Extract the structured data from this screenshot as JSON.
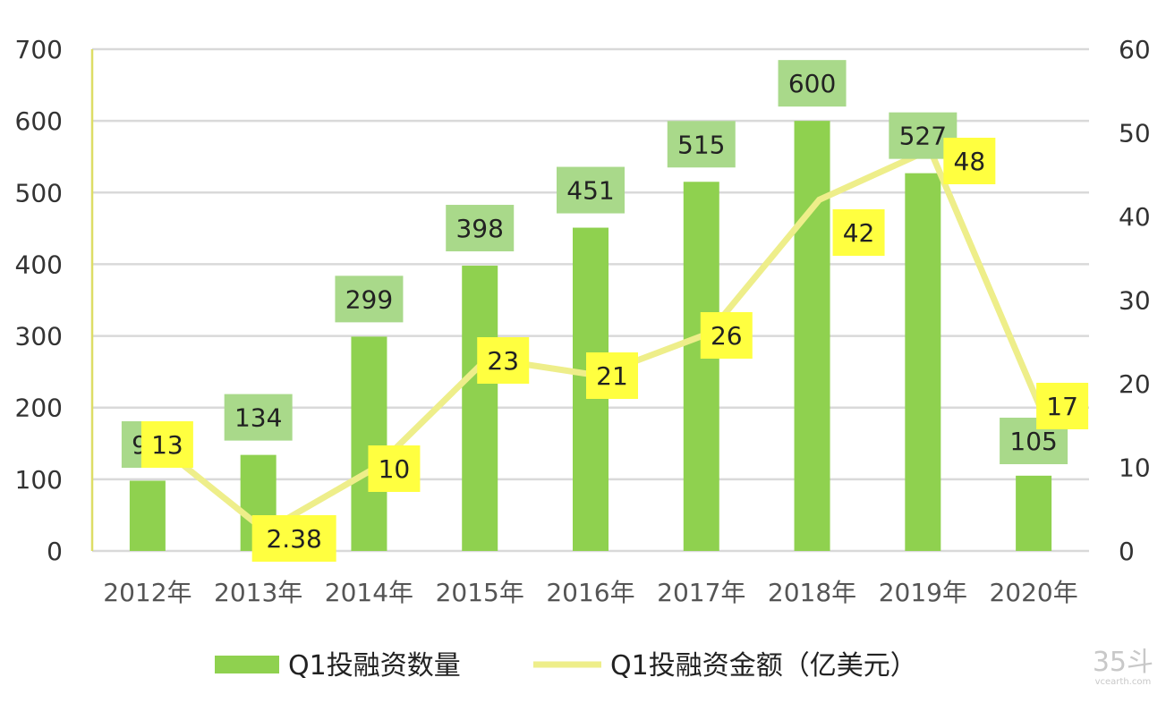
{
  "chart_data": {
    "type": "bar",
    "categories": [
      "2012年",
      "2013年",
      "2014年",
      "2015年",
      "2016年",
      "2017年",
      "2018年",
      "2019年",
      "2020年"
    ],
    "series": [
      {
        "name": "Q1投融资数量",
        "type": "bar",
        "axis": "left",
        "values": [
          98,
          134,
          299,
          398,
          451,
          515,
          600,
          527,
          105
        ],
        "labels": [
          "98",
          "134",
          "299",
          "398",
          "451",
          "515",
          "600",
          "527",
          "105"
        ]
      },
      {
        "name": "Q1投融资金额（亿美元）",
        "type": "line",
        "axis": "right",
        "values": [
          13,
          2.38,
          10,
          23,
          21,
          26,
          42,
          48,
          17
        ],
        "labels": [
          "13",
          "2.38",
          "10",
          "23",
          "21",
          "26",
          "42",
          "48",
          "17"
        ]
      }
    ],
    "y_left": {
      "min": 0,
      "max": 700,
      "ticks": [
        "0",
        "100",
        "200",
        "300",
        "400",
        "500",
        "600",
        "700"
      ]
    },
    "y_right": {
      "min": 0,
      "max": 60,
      "ticks": [
        "0",
        "10",
        "20",
        "30",
        "40",
        "50",
        "60"
      ]
    },
    "grid": true,
    "legend": "bottom",
    "colors": {
      "bar": "#8fd14f",
      "bar_label_bg": "#a9d98a",
      "line": "#eeee8a",
      "line_label_bg": "#ffff40",
      "grid": "#d9d9d9",
      "axis": "#dddd66"
    }
  },
  "watermark": {
    "main": "35斗",
    "sub": "vcearth.com"
  }
}
